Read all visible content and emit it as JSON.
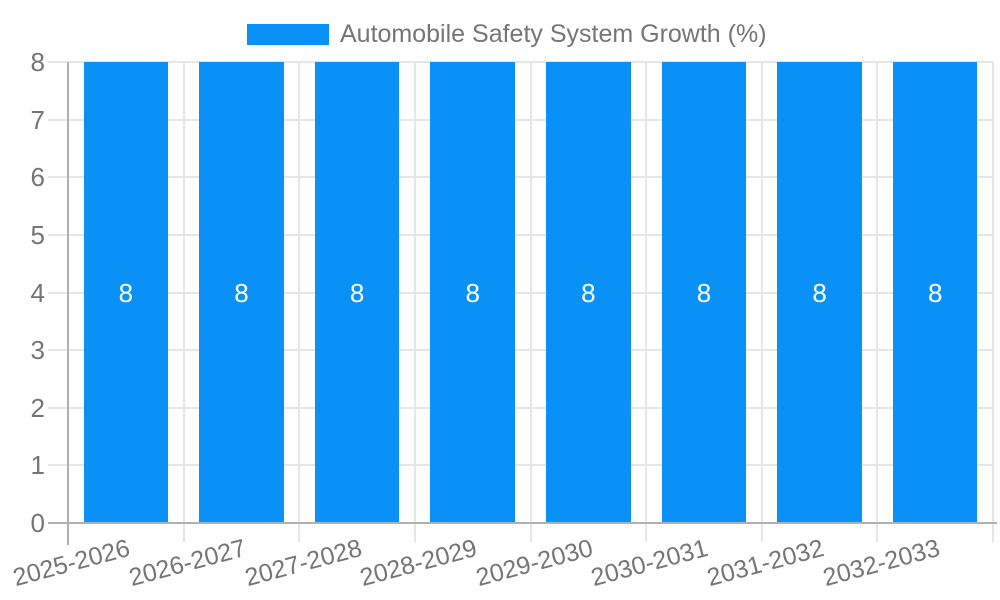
{
  "legend": {
    "label": "Automobile Safety System Growth (%)"
  },
  "chart_data": {
    "type": "bar",
    "title": "Automobile Safety System Growth (%)",
    "categories": [
      "2025-2026",
      "2026-2027",
      "2027-2028",
      "2028-2029",
      "2029-2030",
      "2030-2031",
      "2031-2032",
      "2032-2033"
    ],
    "values": [
      8,
      8,
      8,
      8,
      8,
      8,
      8,
      8
    ],
    "bar_value_labels": [
      "8",
      "8",
      "8",
      "8",
      "8",
      "8",
      "8",
      "8"
    ],
    "xlabel": "",
    "ylabel": "",
    "ylim": [
      0,
      8
    ],
    "yticks": [
      0,
      1,
      2,
      3,
      4,
      5,
      6,
      7,
      8
    ],
    "grid": true,
    "legend_position": "top-center",
    "colors": {
      "bar": "#0991f8",
      "grid": "#e6e6e6",
      "axis": "#b0b0b0",
      "tick_label": "#757575",
      "legend_text": "#757575",
      "value_label": "#ffffff",
      "background": "#ffffff"
    }
  }
}
